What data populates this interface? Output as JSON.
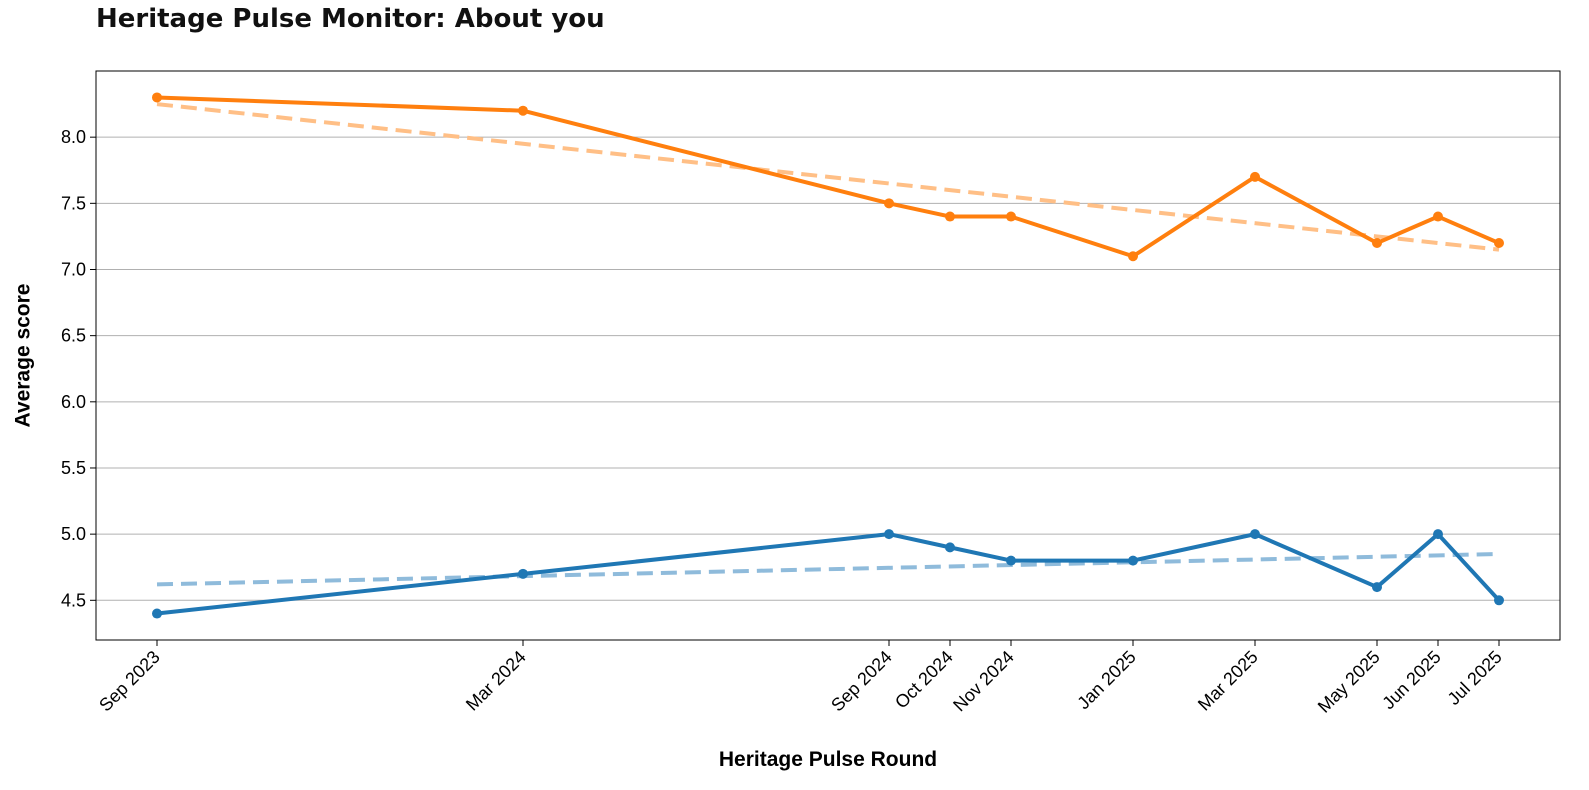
{
  "title": "Heritage Pulse Monitor: About you",
  "chart_data": {
    "type": "line",
    "xlabel": "Heritage Pulse Round",
    "ylabel": "Average score",
    "x": [
      "2023-09",
      "2024-03",
      "2024-09",
      "2024-10",
      "2024-11",
      "2025-01",
      "2025-03",
      "2025-05",
      "2025-06",
      "2025-07"
    ],
    "x_tick_labels": [
      "Sep 2023",
      "Mar 2024",
      "Sep 2024",
      "Oct 2024",
      "Nov 2024",
      "Jan 2025",
      "Mar 2025",
      "May 2025",
      "Jun 2025",
      "Jul 2025"
    ],
    "xlim": [
      "2023-08",
      "2025-08"
    ],
    "ylim": [
      4.2,
      8.5
    ],
    "y_ticks": [
      "4.5",
      "5.0",
      "5.5",
      "6.0",
      "6.5",
      "7.0",
      "7.5",
      "8.0"
    ],
    "grid": "horizontal",
    "legend": "none",
    "series": [
      {
        "color": "#ff7f0e",
        "values": [
          8.3,
          8.2,
          7.5,
          7.4,
          7.4,
          7.1,
          7.7,
          7.2,
          7.4,
          7.2
        ],
        "trend": {
          "start": 8.25,
          "end": 7.15,
          "color": "#ffbf86",
          "style": "dashed"
        }
      },
      {
        "color": "#1f77b4",
        "values": [
          4.4,
          4.7,
          5.0,
          4.9,
          4.8,
          4.8,
          5.0,
          4.6,
          5.0,
          4.5
        ],
        "trend": {
          "start": 4.62,
          "end": 4.85,
          "color": "#8fbbdb",
          "style": "dashed"
        }
      }
    ]
  }
}
